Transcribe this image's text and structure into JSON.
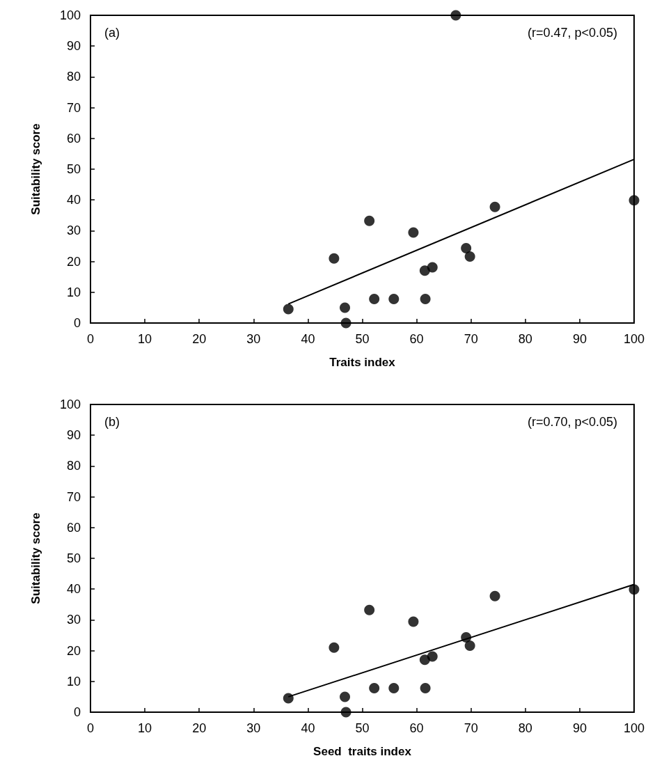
{
  "chart_data": [
    {
      "type": "scatter",
      "xlabel": "Traits index",
      "ylabel": "Suitability score",
      "annotations": [
        "(a)",
        "(r=0.47, p<0.05)"
      ],
      "xlim": [
        0,
        100
      ],
      "xticks": [
        0,
        10,
        20,
        30,
        40,
        50,
        60,
        70,
        80,
        90,
        100
      ],
      "ylim": [
        0,
        100
      ],
      "yticks": [
        0,
        10,
        20,
        30,
        40,
        50,
        60,
        70,
        80,
        90,
        100
      ],
      "grid": false,
      "marker": "circle",
      "series": [
        {
          "color": "#000000",
          "x": [
            36.4,
            46.8,
            47.0,
            44.8,
            51.3,
            52.2,
            55.8,
            59.4,
            61.6,
            61.5,
            62.9,
            69.1,
            69.8,
            74.4,
            100,
            67.2
          ],
          "values": [
            4.5,
            5.0,
            0,
            21.0,
            33.2,
            7.8,
            7.8,
            29.4,
            7.8,
            17.0,
            18.1,
            24.3,
            21.6,
            37.7,
            39.9,
            100
          ]
        },
        {
          "type": "line",
          "marker": "none",
          "color": "#000000",
          "x": [
            36.4,
            100
          ],
          "values": [
            6.2,
            53.2
          ]
        }
      ]
    },
    {
      "type": "scatter",
      "xlabel": "Seed  traits index",
      "ylabel": "Suitability score",
      "annotations": [
        "(b)",
        "(r=0.70, p<0.05)"
      ],
      "xlim": [
        0,
        100
      ],
      "xticks": [
        0,
        10,
        20,
        30,
        40,
        50,
        60,
        70,
        80,
        90,
        100
      ],
      "ylim": [
        0,
        100
      ],
      "yticks": [
        0,
        10,
        20,
        30,
        40,
        50,
        60,
        70,
        80,
        90,
        100
      ],
      "grid": false,
      "marker": "circle",
      "series": [
        {
          "color": "#000000",
          "x": [
            36.4,
            46.8,
            47.0,
            44.8,
            51.3,
            52.2,
            55.8,
            59.4,
            61.6,
            61.5,
            62.9,
            69.1,
            69.8,
            74.4,
            100
          ],
          "values": [
            4.5,
            5.0,
            0,
            21.0,
            33.2,
            7.8,
            7.8,
            29.4,
            7.8,
            17.0,
            18.1,
            24.3,
            21.6,
            37.7,
            39.9
          ]
        },
        {
          "type": "line",
          "marker": "none",
          "color": "#000000",
          "x": [
            36.4,
            100
          ],
          "values": [
            5.0,
            41.5
          ]
        }
      ]
    }
  ]
}
